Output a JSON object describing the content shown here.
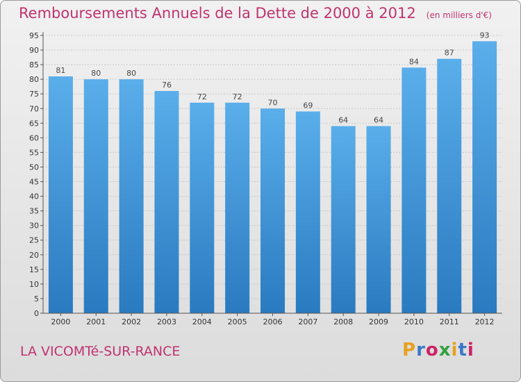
{
  "header": {
    "title": "Remboursements Annuels de la Dette de 2000 à 2012",
    "unit": "(en milliers d'€)"
  },
  "footer": {
    "commune": "LA VICOMTé-SUR-RANCE",
    "logo": "Proxiti",
    "logo_colors": [
      "#e8a020",
      "#3a78c8",
      "#cc2266",
      "#33a040",
      "#e8a020",
      "#3a78c8",
      "#cc2266"
    ]
  },
  "colors": {
    "bar_top": "#5aaeea",
    "bar_bottom": "#2a7ac0",
    "title": "#c0336f"
  },
  "chart_data": {
    "type": "bar",
    "categories": [
      "2000",
      "2001",
      "2002",
      "2003",
      "2004",
      "2005",
      "2006",
      "2007",
      "2008",
      "2009",
      "2010",
      "2011",
      "2012"
    ],
    "values": [
      81,
      80,
      80,
      76,
      72,
      72,
      70,
      69,
      64,
      64,
      84,
      87,
      93
    ],
    "yticks": [
      0,
      5,
      10,
      15,
      20,
      25,
      30,
      35,
      40,
      45,
      50,
      55,
      60,
      65,
      70,
      75,
      80,
      85,
      90,
      95
    ],
    "ylim": [
      0,
      95
    ],
    "grid": true,
    "legend": "none"
  }
}
